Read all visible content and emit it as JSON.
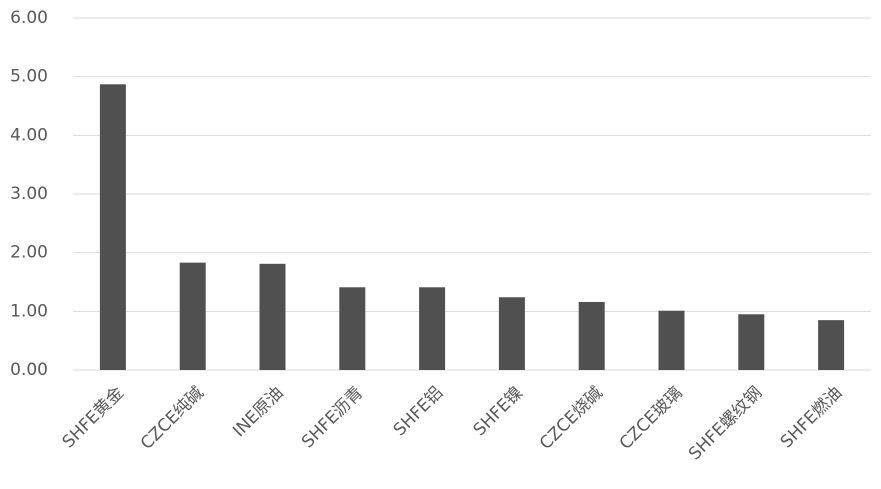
{
  "chart_data": {
    "type": "bar",
    "categories": [
      "SHFE黄金",
      "CZCE纯碱",
      "INE原油",
      "SHFE沥青",
      "SHFE铝",
      "SHFE镍",
      "CZCE烧碱",
      "CZCE玻璃",
      "SHFE螺纹钢",
      "SHFE燃油"
    ],
    "values": [
      4.87,
      1.83,
      1.81,
      1.41,
      1.41,
      1.24,
      1.16,
      1.01,
      0.95,
      0.85
    ],
    "color": "#505050",
    "ylim": [
      0,
      6
    ],
    "yticks": [
      {
        "value": 0,
        "label": "0.00"
      },
      {
        "value": 1,
        "label": "1.00"
      },
      {
        "value": 2,
        "label": "2.00"
      },
      {
        "value": 3,
        "label": "3.00"
      },
      {
        "value": 4,
        "label": "4.00"
      },
      {
        "value": 5,
        "label": "5.00"
      },
      {
        "value": 6,
        "label": "6.00"
      }
    ],
    "grid": true
  }
}
